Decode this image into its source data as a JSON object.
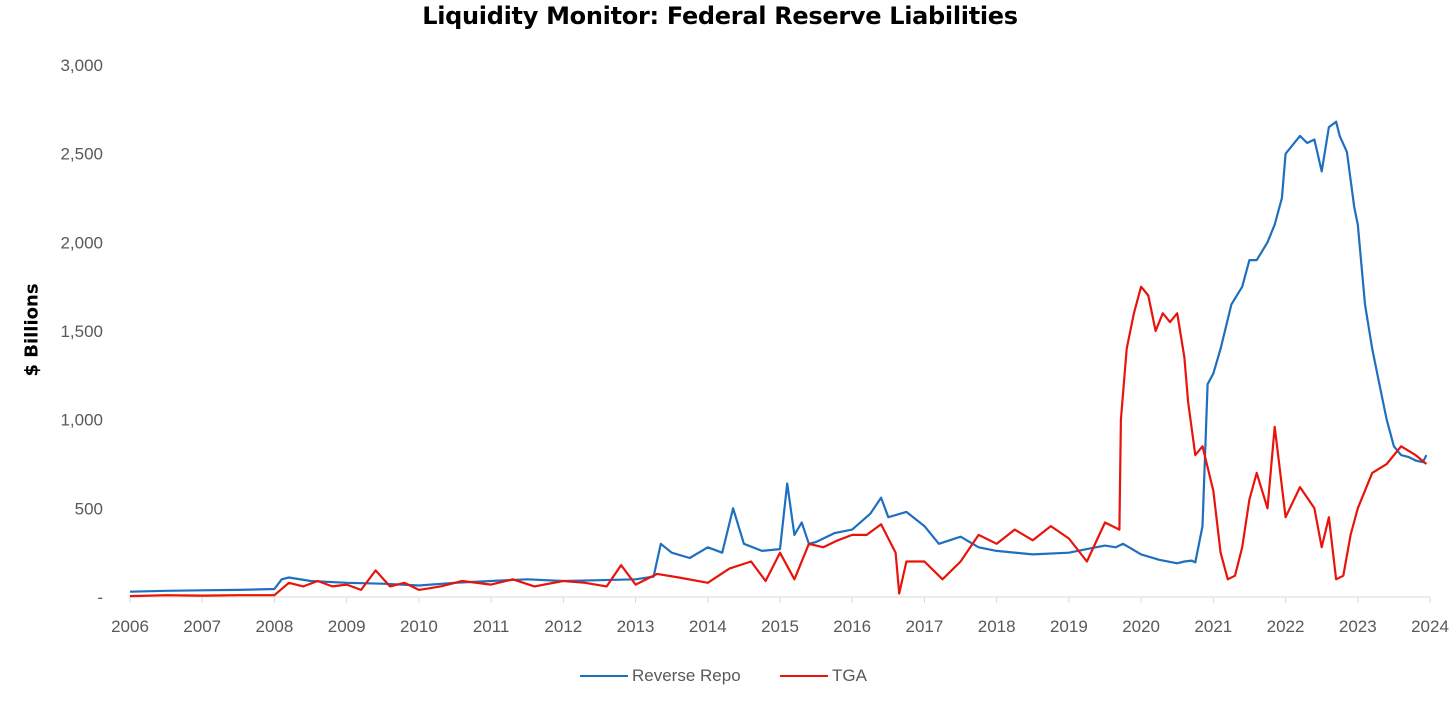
{
  "chart_data": {
    "type": "line",
    "title": "Liquidity Monitor: Federal Reserve Liabilities",
    "xlabel": "",
    "ylabel": "$ Billions",
    "xlim": [
      2006,
      2024
    ],
    "ylim": [
      0,
      3000
    ],
    "x_ticks": [
      "2006",
      "2007",
      "2008",
      "2009",
      "2010",
      "2011",
      "2012",
      "2013",
      "2014",
      "2015",
      "2016",
      "2017",
      "2018",
      "2019",
      "2020",
      "2021",
      "2022",
      "2023",
      "2024"
    ],
    "y_ticks": [
      "-",
      "500",
      "1,000",
      "1,500",
      "2,000",
      "2,500",
      "3,000"
    ],
    "grid": false,
    "legend_position": "bottom",
    "series": [
      {
        "name": "Reverse Repo",
        "color": "#1f6fbf",
        "x": [
          2006.0,
          2006.5,
          2007.0,
          2007.5,
          2008.0,
          2008.1,
          2008.2,
          2008.5,
          2009.0,
          2009.5,
          2010.0,
          2010.5,
          2011.0,
          2011.5,
          2012.0,
          2012.5,
          2013.0,
          2013.25,
          2013.35,
          2013.5,
          2013.75,
          2014.0,
          2014.2,
          2014.35,
          2014.5,
          2014.75,
          2015.0,
          2015.1,
          2015.2,
          2015.3,
          2015.4,
          2015.5,
          2015.75,
          2016.0,
          2016.25,
          2016.4,
          2016.5,
          2016.75,
          2017.0,
          2017.2,
          2017.5,
          2017.75,
          2018.0,
          2018.5,
          2019.0,
          2019.25,
          2019.5,
          2019.65,
          2019.75,
          2020.0,
          2020.25,
          2020.5,
          2020.6,
          2020.7,
          2020.75,
          2020.85,
          2020.92,
          2021.0,
          2021.1,
          2021.25,
          2021.4,
          2021.5,
          2021.6,
          2021.75,
          2021.85,
          2021.95,
          2022.0,
          2022.1,
          2022.2,
          2022.3,
          2022.4,
          2022.5,
          2022.6,
          2022.7,
          2022.75,
          2022.85,
          2022.95,
          2023.0,
          2023.1,
          2023.2,
          2023.3,
          2023.4,
          2023.5,
          2023.6,
          2023.7,
          2023.8,
          2023.9,
          2023.95
        ],
        "values": [
          30,
          35,
          38,
          40,
          45,
          100,
          110,
          90,
          80,
          75,
          65,
          80,
          90,
          100,
          90,
          95,
          100,
          115,
          300,
          250,
          220,
          280,
          250,
          500,
          300,
          260,
          270,
          640,
          350,
          420,
          300,
          310,
          360,
          380,
          470,
          560,
          450,
          480,
          400,
          300,
          340,
          280,
          260,
          240,
          250,
          270,
          290,
          280,
          300,
          240,
          210,
          190,
          200,
          205,
          195,
          400,
          1200,
          1260,
          1400,
          1650,
          1750,
          1900,
          1900,
          2000,
          2100,
          2250,
          2500,
          2550,
          2600,
          2560,
          2580,
          2400,
          2650,
          2680,
          2600,
          2510,
          2200,
          2100,
          1650,
          1400,
          1200,
          1000,
          850,
          800,
          790,
          770,
          760,
          800
        ]
      },
      {
        "name": "TGA",
        "color": "#e8140c",
        "x": [
          2006.0,
          2006.5,
          2007.0,
          2007.5,
          2008.0,
          2008.2,
          2008.4,
          2008.6,
          2008.8,
          2009.0,
          2009.2,
          2009.4,
          2009.6,
          2009.8,
          2010.0,
          2010.3,
          2010.6,
          2011.0,
          2011.3,
          2011.6,
          2012.0,
          2012.3,
          2012.6,
          2012.8,
          2013.0,
          2013.3,
          2013.6,
          2014.0,
          2014.3,
          2014.6,
          2014.8,
          2015.0,
          2015.2,
          2015.4,
          2015.6,
          2015.8,
          2016.0,
          2016.2,
          2016.4,
          2016.6,
          2016.65,
          2016.75,
          2017.0,
          2017.25,
          2017.5,
          2017.75,
          2018.0,
          2018.25,
          2018.5,
          2018.75,
          2019.0,
          2019.25,
          2019.5,
          2019.7,
          2019.72,
          2019.8,
          2019.9,
          2020.0,
          2020.1,
          2020.2,
          2020.3,
          2020.4,
          2020.5,
          2020.6,
          2020.65,
          2020.75,
          2020.85,
          2021.0,
          2021.1,
          2021.2,
          2021.3,
          2021.4,
          2021.5,
          2021.6,
          2021.75,
          2021.85,
          2022.0,
          2022.2,
          2022.4,
          2022.5,
          2022.6,
          2022.7,
          2022.8,
          2022.9,
          2023.0,
          2023.2,
          2023.4,
          2023.6,
          2023.8,
          2023.95
        ],
        "values": [
          5,
          10,
          8,
          10,
          10,
          80,
          60,
          90,
          60,
          70,
          40,
          150,
          60,
          80,
          40,
          60,
          90,
          70,
          100,
          60,
          90,
          80,
          60,
          180,
          70,
          130,
          110,
          80,
          160,
          200,
          90,
          250,
          100,
          300,
          280,
          320,
          350,
          350,
          410,
          250,
          20,
          200,
          200,
          100,
          200,
          350,
          300,
          380,
          320,
          400,
          330,
          200,
          420,
          380,
          1000,
          1400,
          1600,
          1750,
          1700,
          1500,
          1600,
          1550,
          1600,
          1350,
          1100,
          800,
          850,
          600,
          250,
          100,
          120,
          280,
          550,
          700,
          500,
          960,
          450,
          620,
          500,
          280,
          450,
          100,
          120,
          350,
          500,
          700,
          750,
          850,
          800,
          750
        ]
      }
    ]
  }
}
